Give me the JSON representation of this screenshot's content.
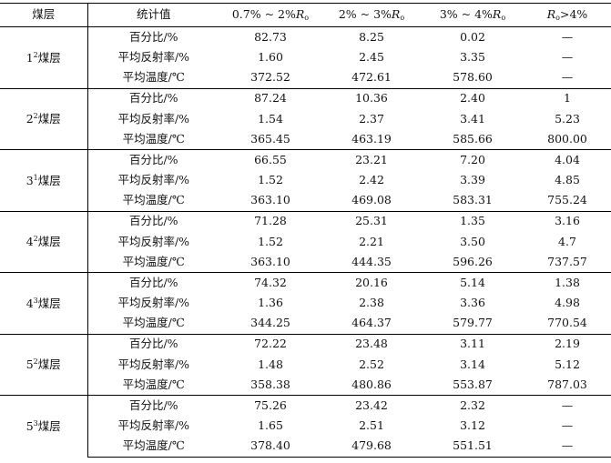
{
  "table": {
    "headers": [
      {
        "label": "煤层"
      },
      {
        "label": "统计值"
      },
      {
        "pre": "0.7% ~ 2%",
        "var": "R",
        "sub": "o",
        "post": ""
      },
      {
        "pre": "2% ~ 3%",
        "var": "R",
        "sub": "o",
        "post": ""
      },
      {
        "pre": "3% ~ 4%",
        "var": "R",
        "sub": "o",
        "post": ""
      },
      {
        "pre": "",
        "var": "R",
        "sub": "o",
        "post": ">4%"
      }
    ],
    "stat_labels": [
      "百分比/%",
      "平均反射率/%",
      "平均温度/℃"
    ],
    "groups": [
      {
        "seam_num": "1",
        "seam_sup": "2",
        "seam_suffix": "煤层",
        "rows": [
          [
            "82.73",
            "8.25",
            "0.02",
            "—"
          ],
          [
            "1.60",
            "2.45",
            "3.35",
            "—"
          ],
          [
            "372.52",
            "472.61",
            "578.60",
            "—"
          ]
        ]
      },
      {
        "seam_num": "2",
        "seam_sup": "2",
        "seam_suffix": "煤层",
        "rows": [
          [
            "87.24",
            "10.36",
            "2.40",
            "1"
          ],
          [
            "1.54",
            "2.37",
            "3.41",
            "5.23"
          ],
          [
            "365.45",
            "463.19",
            "585.66",
            "800.00"
          ]
        ]
      },
      {
        "seam_num": "3",
        "seam_sup": "1",
        "seam_suffix": "煤层",
        "rows": [
          [
            "66.55",
            "23.21",
            "7.20",
            "4.04"
          ],
          [
            "1.52",
            "2.42",
            "3.39",
            "4.85"
          ],
          [
            "363.10",
            "469.08",
            "583.31",
            "755.24"
          ]
        ]
      },
      {
        "seam_num": "4",
        "seam_sup": "2",
        "seam_suffix": "煤层",
        "rows": [
          [
            "71.28",
            "25.31",
            "1.35",
            "3.16"
          ],
          [
            "1.52",
            "2.21",
            "3.50",
            "4.7"
          ],
          [
            "363.10",
            "444.35",
            "596.26",
            "737.57"
          ]
        ]
      },
      {
        "seam_num": "4",
        "seam_sup": "3",
        "seam_suffix": "煤层",
        "rows": [
          [
            "74.32",
            "20.16",
            "5.14",
            "1.38"
          ],
          [
            "1.36",
            "2.38",
            "3.36",
            "4.98"
          ],
          [
            "344.25",
            "464.37",
            "579.77",
            "770.54"
          ]
        ]
      },
      {
        "seam_num": "5",
        "seam_sup": "2",
        "seam_suffix": "煤层",
        "rows": [
          [
            "72.22",
            "23.48",
            "3.11",
            "2.19"
          ],
          [
            "1.48",
            "2.52",
            "3.14",
            "5.12"
          ],
          [
            "358.38",
            "480.86",
            "553.87",
            "787.03"
          ]
        ]
      },
      {
        "seam_num": "5",
        "seam_sup": "3",
        "seam_suffix": "煤层",
        "rows": [
          [
            "75.26",
            "23.42",
            "2.32",
            "—"
          ],
          [
            "1.65",
            "2.51",
            "3.12",
            "—"
          ],
          [
            "378.40",
            "479.68",
            "551.51",
            "—"
          ]
        ]
      }
    ]
  }
}
